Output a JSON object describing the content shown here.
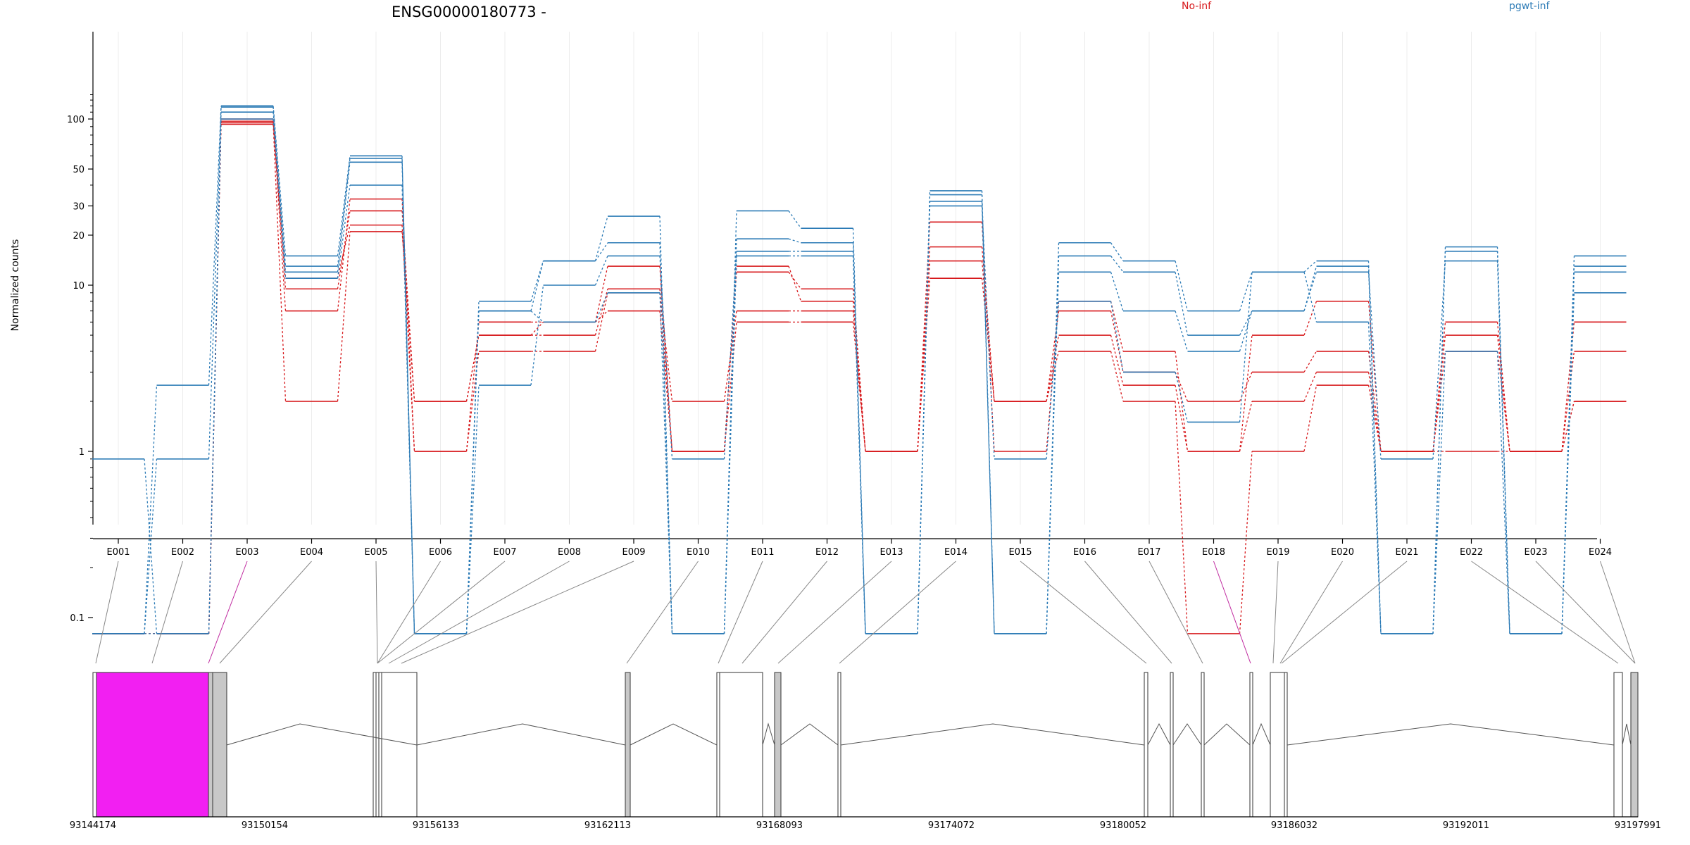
{
  "chart_data": {
    "type": "line",
    "title": "ENSG00000180773 -",
    "ylabel": "Normalized counts",
    "yscale": "log",
    "yticks": [
      0.1,
      1,
      10,
      20,
      30,
      50,
      100
    ],
    "ylim": [
      0.08,
      150
    ],
    "legend_position": "top-right",
    "legend": [
      {
        "name": "No-inf",
        "color": "#d7191c"
      },
      {
        "name": "pgwt-inf",
        "color": "#2c7bb6"
      }
    ],
    "categories": [
      "E001",
      "E002",
      "E003",
      "E004",
      "E005",
      "E006",
      "E007",
      "E008",
      "E009",
      "E010",
      "E011",
      "E012",
      "E013",
      "E014",
      "E015",
      "E016",
      "E017",
      "E018",
      "E019",
      "E020",
      "E021",
      "E022",
      "E023",
      "E024"
    ],
    "series": [
      {
        "group": "No-inf",
        "color": "#d7191c",
        "values": [
          0.08,
          0.08,
          100,
          7,
          33,
          1,
          6,
          6,
          13,
          1,
          13,
          8,
          1,
          24,
          1,
          8,
          4,
          1,
          5,
          8,
          1,
          6,
          1,
          6
        ]
      },
      {
        "group": "No-inf",
        "color": "#d7191c",
        "values": [
          0.08,
          0.08,
          97,
          9.5,
          28,
          2,
          5,
          5,
          9.5,
          1,
          12,
          9.5,
          1,
          17,
          2,
          7,
          3,
          2,
          3,
          4,
          1,
          5,
          1,
          4
        ]
      },
      {
        "group": "No-inf",
        "color": "#d7191c",
        "values": [
          0.08,
          0.08,
          95,
          11,
          23,
          1,
          4,
          4,
          9,
          2,
          7,
          7,
          1,
          14,
          2,
          5,
          2.5,
          1,
          2,
          3,
          1,
          4,
          1,
          2
        ]
      },
      {
        "group": "No-inf",
        "color": "#d7191c",
        "values": [
          0.08,
          0.08,
          93,
          2,
          21,
          2,
          5,
          6,
          7,
          1,
          6,
          6,
          1,
          11,
          2,
          4,
          2,
          0.08,
          1,
          2.5,
          1,
          1,
          1,
          2
        ]
      },
      {
        "group": "pgwt-inf",
        "color": "#2c7bb6",
        "values": [
          0.08,
          2.5,
          120,
          15,
          60,
          0.08,
          8,
          14,
          26,
          0.08,
          28,
          22,
          0.08,
          37,
          0.08,
          18,
          14,
          7,
          12,
          14,
          0.08,
          17,
          0.08,
          15
        ]
      },
      {
        "group": "pgwt-inf",
        "color": "#2c7bb6",
        "values": [
          0.9,
          0.08,
          118,
          13,
          58,
          0.08,
          7,
          14,
          18,
          0.08,
          19,
          18,
          0.08,
          35,
          0.08,
          15,
          12,
          5,
          7,
          13,
          0.08,
          16,
          0.08,
          13
        ]
      },
      {
        "group": "pgwt-inf",
        "color": "#2c7bb6",
        "values": [
          0.08,
          0.9,
          110,
          12,
          55,
          0.08,
          2.5,
          10,
          15,
          0.9,
          16,
          16,
          0.08,
          32,
          0.08,
          12,
          7,
          4,
          7,
          12,
          0.9,
          14,
          0.08,
          12
        ]
      },
      {
        "group": "pgwt-inf",
        "color": "#2c7bb6",
        "values": [
          0.08,
          0.08,
          100,
          11,
          40,
          0.08,
          7,
          6,
          9,
          0.08,
          15,
          15,
          0.08,
          30,
          0.9,
          8,
          3,
          1.5,
          12,
          6,
          0.08,
          4,
          0.08,
          9
        ]
      }
    ],
    "gene_model": {
      "coordinate_ticks": [
        "93144174",
        "93150154",
        "93156133",
        "93162113",
        "93168093",
        "93174072",
        "93180052",
        "93186032",
        "93192011",
        "93197991"
      ],
      "highlight_color": "#f21ff2",
      "exon_fill": "#c8c8c8",
      "highlighted_exons": [
        "E003",
        "E018"
      ]
    }
  }
}
